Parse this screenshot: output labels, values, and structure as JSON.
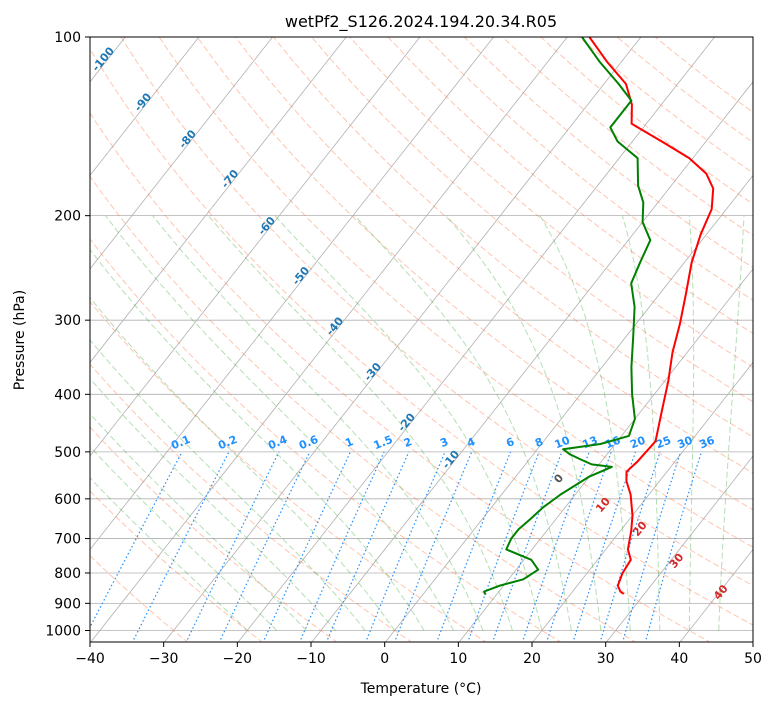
{
  "chart_data": {
    "type": "line",
    "title": "wetPf2_S126.2024.194.20.34.R05",
    "xlabel": "Temperature (°C)",
    "ylabel": "Pressure (hPa)",
    "xlim": [
      -40,
      50
    ],
    "ylim": [
      1050,
      100
    ],
    "y_scale": "log",
    "grid": true,
    "x_ticks": [
      "−40",
      "−30",
      "−20",
      "−10",
      "0",
      "10",
      "20",
      "30",
      "40",
      "50"
    ],
    "x_tick_values": [
      -40,
      -30,
      -20,
      -10,
      0,
      10,
      20,
      30,
      40,
      50
    ],
    "y_ticks": [
      "100",
      "200",
      "300",
      "400",
      "500",
      "600",
      "700",
      "800",
      "900",
      "1000"
    ],
    "y_tick_values": [
      100,
      200,
      300,
      400,
      500,
      600,
      700,
      800,
      900,
      1000
    ],
    "colors": {
      "temperature": "#ff0000",
      "dewpoint": "#008000",
      "isotherm_grid": "#b0b0b0",
      "dry_adiabat": "#ff7f50",
      "moist_adiabat": "#2ca02c",
      "mixing_ratio": "#1e90ff",
      "isotherm_label": "#1f77b4",
      "moist_label": "#d62728"
    },
    "series": [
      {
        "name": "temperature",
        "points": [
          [
            27.2,
            868
          ],
          [
            26.5,
            860
          ],
          [
            25.5,
            840
          ],
          [
            24.8,
            800
          ],
          [
            24.5,
            760
          ],
          [
            23.0,
            730
          ],
          [
            21.5,
            680
          ],
          [
            20.0,
            640
          ],
          [
            17.5,
            590
          ],
          [
            15.5,
            560
          ],
          [
            14.5,
            540
          ],
          [
            14.9,
            520
          ],
          [
            15.2,
            480
          ],
          [
            12.5,
            420
          ],
          [
            10.5,
            380
          ],
          [
            8.0,
            340
          ],
          [
            6.0,
            305
          ],
          [
            3.5,
            270
          ],
          [
            1.0,
            240
          ],
          [
            -0.8,
            215
          ],
          [
            -2.0,
            195
          ],
          [
            -4.0,
            180
          ],
          [
            -6.5,
            170
          ],
          [
            -10.5,
            160
          ],
          [
            -16.0,
            150
          ],
          [
            -22.0,
            140
          ],
          [
            -24.0,
            130
          ],
          [
            -27.0,
            120
          ],
          [
            -32.0,
            110
          ],
          [
            -37.0,
            100
          ]
        ]
      },
      {
        "name": "dewpoint",
        "points": [
          [
            8.5,
            870
          ],
          [
            8.0,
            860
          ],
          [
            9.5,
            840
          ],
          [
            12.0,
            820
          ],
          [
            13.0,
            790
          ],
          [
            11.0,
            760
          ],
          [
            6.5,
            730
          ],
          [
            6.0,
            700
          ],
          [
            6.0,
            675
          ],
          [
            6.5,
            650
          ],
          [
            7.0,
            620
          ],
          [
            8.0,
            590
          ],
          [
            10.0,
            550
          ],
          [
            12.0,
            530
          ],
          [
            9.0,
            525
          ],
          [
            7.0,
            515
          ],
          [
            5.0,
            505
          ],
          [
            3.5,
            495
          ],
          [
            8.0,
            485
          ],
          [
            11.0,
            470
          ],
          [
            10.0,
            440
          ],
          [
            7.0,
            400
          ],
          [
            4.0,
            360
          ],
          [
            1.0,
            320
          ],
          [
            -2.0,
            285
          ],
          [
            -5.0,
            260
          ],
          [
            -6.0,
            240
          ],
          [
            -7.0,
            220
          ],
          [
            -10.0,
            205
          ],
          [
            -12.0,
            190
          ],
          [
            -14.5,
            178
          ],
          [
            -17.5,
            160
          ],
          [
            -22.0,
            150
          ],
          [
            -24.5,
            142
          ],
          [
            -24.5,
            128
          ],
          [
            -28.0,
            120
          ],
          [
            -33.0,
            110
          ],
          [
            -38.0,
            100
          ]
        ]
      }
    ],
    "annotations": {
      "isotherm_labels": [
        "-100",
        "-90",
        "-80",
        "-70",
        "-60",
        "-50",
        "-40",
        "-30",
        "-20",
        "-10"
      ],
      "mixing_ratio_labels": [
        "0.1",
        "0.2",
        "0.4",
        "0.6",
        "1",
        "1.5",
        "2",
        "3",
        "4",
        "6",
        "8",
        "10",
        "13",
        "16",
        "20",
        "25",
        "30",
        "36"
      ],
      "moist_adiabat_labels": [
        "0",
        "10",
        "20",
        "30",
        "40"
      ]
    }
  }
}
